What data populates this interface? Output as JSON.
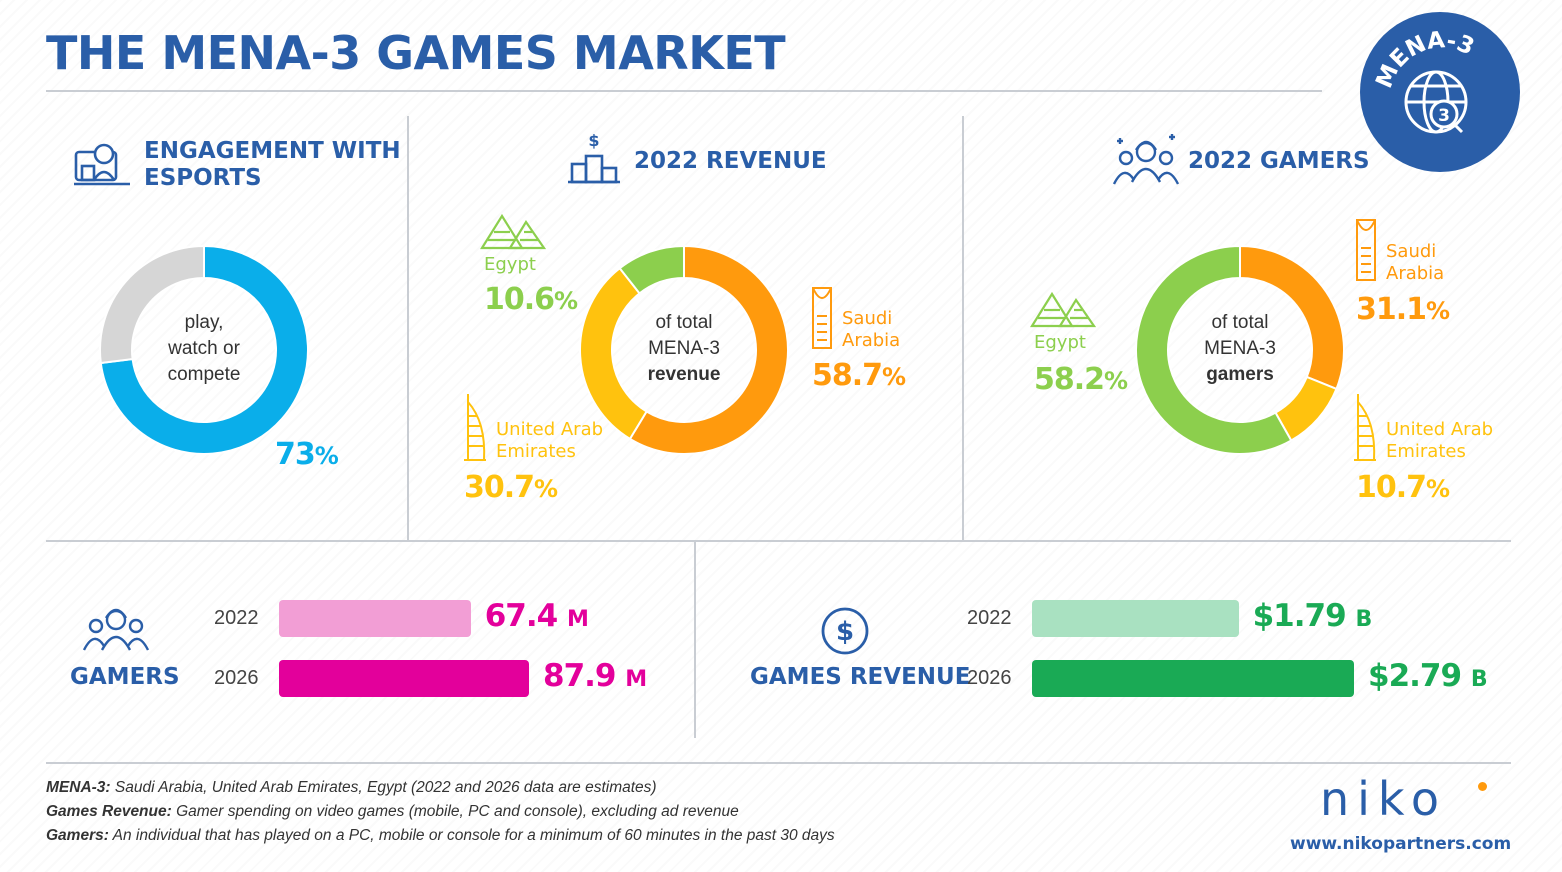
{
  "title": "THE MENA-3 GAMES MARKET",
  "badge": {
    "text": "MENA-3",
    "number": "3"
  },
  "colors": {
    "blue": "#2a5ea8",
    "cyan": "#0aaeea",
    "grey": "#d6d6d6",
    "orange": "#ff9a0d",
    "yellow": "#ffc20e",
    "green": "#8ccf4d",
    "pink_light": "#f29ed5",
    "pink": "#e3009b",
    "green_light": "#a9e1c1",
    "green_dark": "#1aaa55"
  },
  "engagement": {
    "heading_line1": "ENGAGEMENT WITH",
    "heading_line2": "ESPORTS",
    "center_line1": "play,",
    "center_line2": "watch or",
    "center_line3": "compete",
    "value": "73",
    "pct_sign": "%"
  },
  "revenue_panel": {
    "heading": "2022 REVENUE",
    "center_line1": "of total",
    "center_line2": "MENA-3",
    "center_line3": "revenue",
    "egypt": {
      "label": "Egypt",
      "value": "10.6",
      "pct_sign": "%"
    },
    "saudi": {
      "label_line1": "Saudi",
      "label_line2": "Arabia",
      "value": "58.7",
      "pct_sign": "%"
    },
    "uae": {
      "label_line1": "United Arab",
      "label_line2": "Emirates",
      "value": "30.7",
      "pct_sign": "%"
    }
  },
  "gamers_panel": {
    "heading": "2022 GAMERS",
    "center_line1": "of total",
    "center_line2": "MENA-3",
    "center_line3": "gamers",
    "egypt": {
      "label": "Egypt",
      "value": "58.2",
      "pct_sign": "%"
    },
    "saudi": {
      "label_line1": "Saudi",
      "label_line2": "Arabia",
      "value": "31.1",
      "pct_sign": "%"
    },
    "uae": {
      "label_line1": "United Arab",
      "label_line2": "Emirates",
      "value": "10.7",
      "pct_sign": "%"
    }
  },
  "gamers_bars": {
    "label": "GAMERS",
    "rows": [
      {
        "year": "2022",
        "value": "67.4",
        "unit": "M"
      },
      {
        "year": "2026",
        "value": "87.9",
        "unit": "M"
      }
    ]
  },
  "revenue_bars": {
    "label": "GAMES REVENUE",
    "rows": [
      {
        "year": "2022",
        "value": "$1.79",
        "unit": "B"
      },
      {
        "year": "2026",
        "value": "$2.79",
        "unit": "B"
      }
    ]
  },
  "chart_data": [
    {
      "type": "pie",
      "variant": "donut",
      "title": "ENGAGEMENT WITH ESPORTS",
      "slices": [
        {
          "label": "play, watch or compete",
          "value": 73
        },
        {
          "label": "",
          "value": 27
        }
      ]
    },
    {
      "type": "pie",
      "variant": "donut",
      "title": "2022 REVENUE",
      "slices": [
        {
          "label": "Saudi Arabia",
          "value": 58.7
        },
        {
          "label": "United Arab Emirates",
          "value": 30.7
        },
        {
          "label": "Egypt",
          "value": 10.6
        }
      ]
    },
    {
      "type": "pie",
      "variant": "donut",
      "title": "2022 GAMERS",
      "slices": [
        {
          "label": "Saudi Arabia",
          "value": 31.1
        },
        {
          "label": "United Arab Emirates",
          "value": 10.7
        },
        {
          "label": "Egypt",
          "value": 58.2
        }
      ]
    },
    {
      "type": "bar",
      "orientation": "horizontal",
      "title": "GAMERS",
      "categories": [
        "2022",
        "2026"
      ],
      "values": [
        67.4,
        87.9
      ],
      "unit": "M"
    },
    {
      "type": "bar",
      "orientation": "horizontal",
      "title": "GAMES REVENUE",
      "categories": [
        "2022",
        "2026"
      ],
      "values": [
        1.79,
        2.79
      ],
      "unit": "B"
    }
  ],
  "footer": {
    "line1_label": "MENA-3:",
    "line1_text": " Saudi Arabia, United Arab Emirates, Egypt (2022 and 2026 data are estimates)",
    "line2_label": "Games Revenue:",
    "line2_text": " Gamer spending on video games (mobile, PC and console), excluding ad revenue",
    "line3_label": "Gamers:",
    "line3_text": " An individual that has played on a PC, mobile or console for a minimum of 60 minutes in the past 30 days"
  },
  "brand": {
    "logo": "NIKO",
    "url": "www.nikopartners.com"
  }
}
